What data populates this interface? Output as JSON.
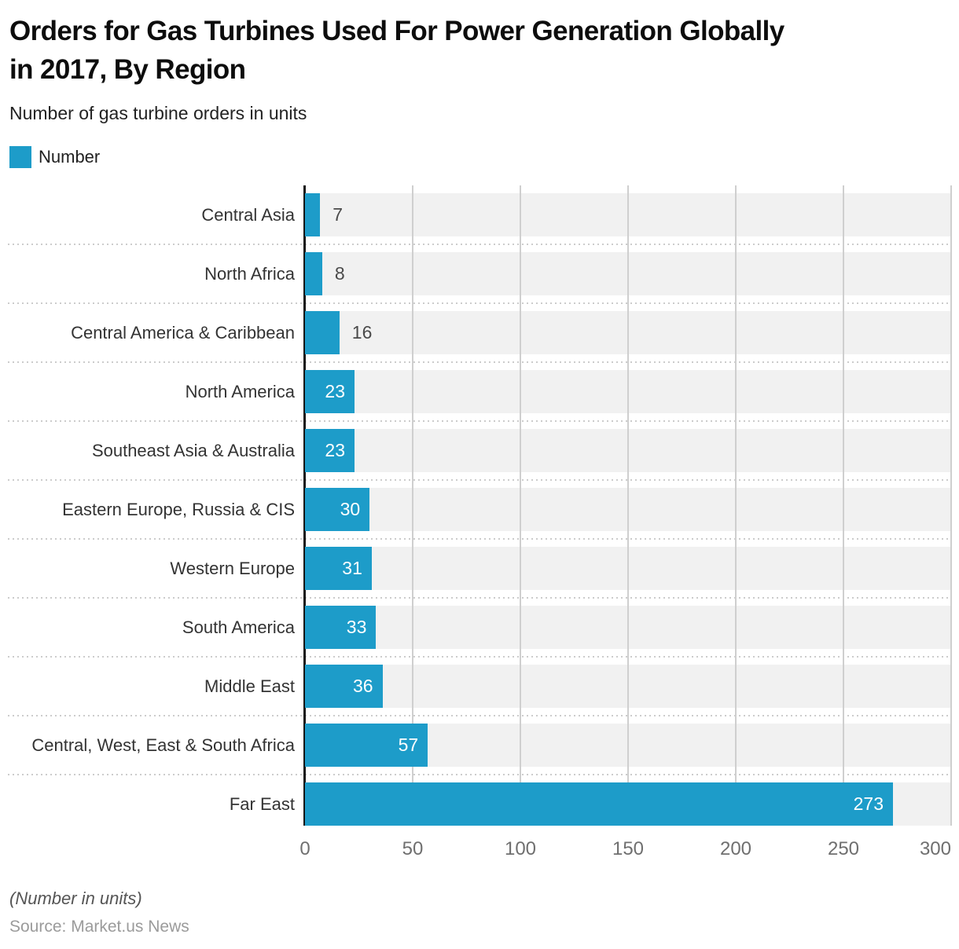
{
  "header": {
    "title": "Orders for Gas Turbines Used For Power Generation Globally\nin 2017, By Region",
    "subtitle": "Number of gas turbine orders in units",
    "legend_label": "Number"
  },
  "chart_data": {
    "type": "bar",
    "orientation": "horizontal",
    "title": "Orders for Gas Turbines Used For Power Generation Globally in 2017, By Region",
    "series_name": "Number",
    "categories": [
      "Central Asia",
      "North Africa",
      "Central America & Caribbean",
      "North America",
      "Southeast Asia & Australia",
      "Eastern Europe, Russia & CIS",
      "Western Europe",
      "South America",
      "Middle East",
      "Central, West, East & South Africa",
      "Far East"
    ],
    "values": [
      7,
      8,
      16,
      23,
      23,
      30,
      31,
      33,
      36,
      57,
      273
    ],
    "xlim": [
      0,
      300
    ],
    "x_ticks": [
      0,
      50,
      100,
      150,
      200,
      250,
      300
    ],
    "grid": true,
    "legend_position": "top-left",
    "colors": {
      "bar": "#1d9cc9",
      "track": "#f1f1f1",
      "gridline": "#cfcfcf",
      "axis": "#161616",
      "value_label_inside": "#ffffff",
      "value_label_outside": "#4a4a4a"
    }
  },
  "footer": {
    "note": "(Number in units)",
    "source": "Source: Market.us News"
  }
}
